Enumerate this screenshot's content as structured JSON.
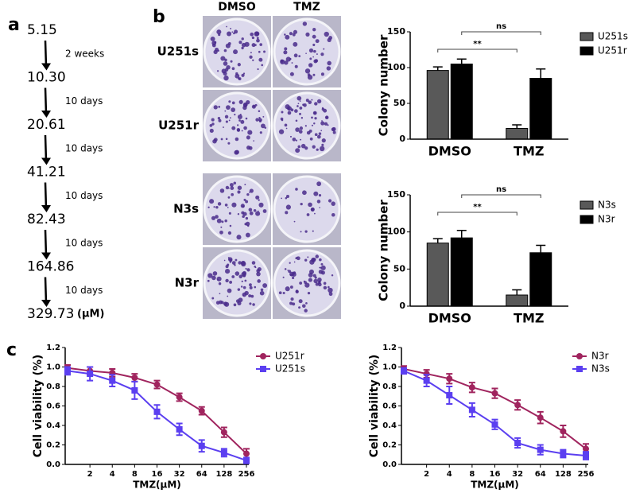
{
  "panel_labels": [
    "a",
    "b",
    "c"
  ],
  "panel_a": {
    "doses": [
      "5.15",
      "10.30",
      "20.61",
      "41.21",
      "82.43",
      "164.86",
      "329.73"
    ],
    "intervals": [
      "2 weeks",
      "10 days",
      "10 days",
      "10 days",
      "10 days",
      "10 days"
    ],
    "unit": "(μM)"
  },
  "panel_b": {
    "columns": [
      "DMSO",
      "TMZ"
    ],
    "rows": [
      "U251s",
      "U251r",
      "N3s",
      "N3r"
    ]
  },
  "chart_data": [
    {
      "type": "bar",
      "y_label": "Colony number",
      "categories": [
        "DMSO",
        "TMZ"
      ],
      "series": [
        {
          "name": "U251s",
          "color": "#595959",
          "values": [
            96,
            15
          ],
          "errors": [
            5,
            5
          ]
        },
        {
          "name": "U251r",
          "color": "#000000",
          "values": [
            105,
            85
          ],
          "errors": [
            7,
            13
          ]
        }
      ],
      "ylim": [
        0,
        150
      ],
      "yticks": [
        0,
        50,
        100,
        150
      ],
      "annotations": [
        "**",
        "ns"
      ],
      "legend": "upper right"
    },
    {
      "type": "bar",
      "y_label": "Colony number",
      "categories": [
        "DMSO",
        "TMZ"
      ],
      "series": [
        {
          "name": "N3s",
          "color": "#595959",
          "values": [
            85,
            15
          ],
          "errors": [
            6,
            7
          ]
        },
        {
          "name": "N3r",
          "color": "#000000",
          "values": [
            92,
            72
          ],
          "errors": [
            10,
            10
          ]
        }
      ],
      "ylim": [
        0,
        150
      ],
      "yticks": [
        0,
        50,
        100,
        150
      ],
      "annotations": [
        "**",
        "ns"
      ],
      "legend": "upper right"
    },
    {
      "type": "line",
      "x_label": "TMZ(μM)",
      "y_label": "Cell viability (%)",
      "categories": [
        null,
        "2",
        "4",
        "8",
        "16",
        "32",
        "64",
        "128",
        "256"
      ],
      "series": [
        {
          "name": "U251r",
          "color": "#a0245e",
          "marker": "circle",
          "values": [
            0.99,
            0.96,
            0.94,
            0.89,
            0.82,
            0.69,
            0.55,
            0.33,
            0.11
          ],
          "errors": [
            0.03,
            0.04,
            0.04,
            0.04,
            0.04,
            0.04,
            0.04,
            0.05,
            0.05
          ]
        },
        {
          "name": "U251s",
          "color": "#5b3ff0",
          "marker": "square",
          "values": [
            0.96,
            0.93,
            0.86,
            0.76,
            0.54,
            0.36,
            0.19,
            0.12,
            0.04
          ],
          "errors": [
            0.04,
            0.07,
            0.06,
            0.09,
            0.07,
            0.06,
            0.06,
            0.04,
            0.03
          ]
        }
      ],
      "ylim": [
        0,
        1.2
      ],
      "yticks": [
        {
          "value": 0,
          "label": "0.0"
        },
        {
          "value": 0.2,
          "label": "0.2"
        },
        {
          "value": 0.4,
          "label": "0.4"
        },
        {
          "value": 0.6,
          "label": "0.6"
        },
        {
          "value": 0.8,
          "label": "0.8"
        },
        {
          "value": 1.0,
          "label": "1.0"
        },
        {
          "value": 1.2,
          "label": "1.2"
        }
      ],
      "legend": "upper right"
    },
    {
      "type": "line",
      "x_label": "TMZ(μM)",
      "y_label": "Cell viability (%)",
      "categories": [
        null,
        "2",
        "4",
        "8",
        "16",
        "32",
        "64",
        "128",
        "256"
      ],
      "series": [
        {
          "name": "N3r",
          "color": "#a0245e",
          "marker": "circle",
          "values": [
            0.98,
            0.93,
            0.88,
            0.79,
            0.73,
            0.61,
            0.48,
            0.34,
            0.16
          ],
          "errors": [
            0.03,
            0.04,
            0.05,
            0.05,
            0.05,
            0.05,
            0.06,
            0.06,
            0.05
          ]
        },
        {
          "name": "N3s",
          "color": "#5b3ff0",
          "marker": "square",
          "values": [
            0.96,
            0.86,
            0.71,
            0.56,
            0.41,
            0.22,
            0.15,
            0.11,
            0.09
          ],
          "errors": [
            0.03,
            0.06,
            0.09,
            0.07,
            0.05,
            0.05,
            0.05,
            0.04,
            0.04
          ]
        }
      ],
      "ylim": [
        0,
        1.2
      ],
      "yticks": [
        {
          "value": 0,
          "label": "0.0"
        },
        {
          "value": 0.2,
          "label": "0.2"
        },
        {
          "value": 0.4,
          "label": "0.4"
        },
        {
          "value": 0.6,
          "label": "0.6"
        },
        {
          "value": 0.8,
          "label": "0.8"
        },
        {
          "value": 1.0,
          "label": "1.0"
        },
        {
          "value": 1.2,
          "label": "1.2"
        }
      ],
      "legend": "upper right"
    }
  ]
}
